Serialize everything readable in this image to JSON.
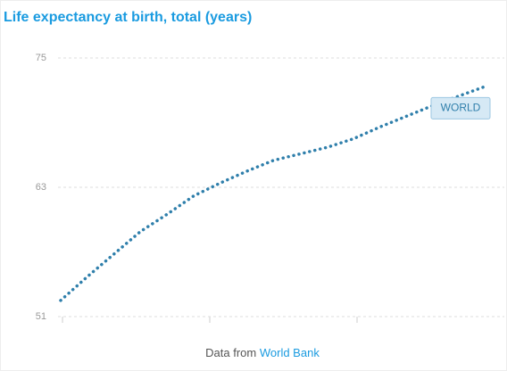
{
  "chart_data": {
    "type": "line",
    "title": "Life expectancy at birth, total (years)",
    "categories": [
      null,
      null,
      null,
      null,
      null,
      null,
      null,
      null,
      null,
      null,
      null,
      null,
      null,
      null,
      null,
      null,
      null
    ],
    "series": [
      {
        "name": "WORLD",
        "color": "#2f7fab",
        "values": [
          52.5,
          54.7,
          56.8,
          58.9,
          60.5,
          62.2,
          63.4,
          64.5,
          65.5,
          66.1,
          66.7,
          67.5,
          68.6,
          69.6,
          70.6,
          71.5,
          72.4
        ]
      }
    ],
    "ylim": [
      51,
      75
    ],
    "yticks": [
      51,
      63,
      75
    ],
    "grid": true,
    "source_prefix": "Data from",
    "source_link": "World Bank"
  }
}
